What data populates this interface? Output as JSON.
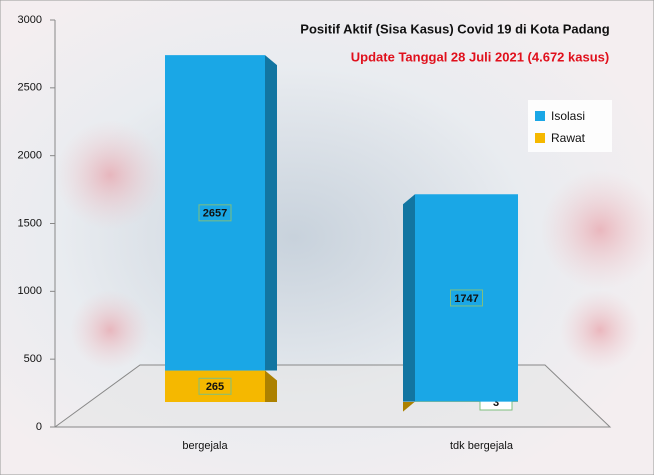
{
  "chart_data": {
    "type": "bar3d_stacked",
    "title": "Positif Aktif  (Sisa Kasus) Covid 19 di Kota Padang",
    "subtitle": "Update Tanggal 28 Juli 2021 (4.672 kasus)",
    "categories": [
      "bergejala",
      "tdk bergejala"
    ],
    "series": [
      {
        "name": "Rawat",
        "color": "#f5b800",
        "values": [
          265,
          3
        ]
      },
      {
        "name": "Isolasi",
        "color": "#1aa7e6",
        "values": [
          2657,
          1747
        ]
      }
    ],
    "ylim": [
      0,
      3000
    ],
    "yticks": [
      0,
      500,
      1000,
      1500,
      2000,
      2500,
      3000
    ]
  }
}
